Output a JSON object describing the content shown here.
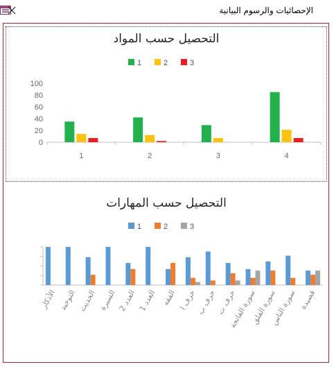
{
  "window": {
    "title": "الإحصائيات والرسوم البيانية",
    "icon": "form-icon",
    "close_icon": "close-icon"
  },
  "chart_data": [
    {
      "type": "bar",
      "title": "التحصيل حسب المواد",
      "categories": [
        "1",
        "2",
        "3",
        "4"
      ],
      "series": [
        {
          "name": "1",
          "color": "#22b14c",
          "values": [
            35,
            42,
            29,
            85
          ]
        },
        {
          "name": "2",
          "color": "#ffc20e",
          "values": [
            14,
            12,
            7,
            21
          ]
        },
        {
          "name": "3",
          "color": "#ed1c24",
          "values": [
            7,
            2,
            0,
            7
          ]
        }
      ],
      "ylim": [
        0,
        100
      ],
      "yticks": [
        0,
        20,
        40,
        60,
        80,
        100
      ],
      "legend": "top-center",
      "grid": false
    },
    {
      "type": "bar",
      "title": "التحصيل حسب المهارات",
      "categories": [
        "الأذكار",
        "التوحيد",
        "الحديث",
        "السيرة",
        "العدد 2",
        "العدد 1",
        "الفقه",
        "حرف ا",
        "حرف ب",
        "حرف ت",
        "سورة الفاتحة",
        "سورة الفلق",
        "سورة الناس",
        "قصيدة"
      ],
      "series": [
        {
          "name": "1",
          "color": "#5b9bd5",
          "values": [
            100,
            100,
            73,
            100,
            58,
            100,
            42,
            73,
            88,
            58,
            42,
            62,
            77,
            38
          ]
        },
        {
          "name": "2",
          "color": "#ed7d31",
          "values": [
            0,
            0,
            27,
            0,
            42,
            0,
            58,
            19,
            12,
            31,
            19,
            38,
            19,
            27
          ]
        },
        {
          "name": "3",
          "color": "#a5a5a5",
          "values": [
            0,
            0,
            0,
            0,
            0,
            0,
            0,
            8,
            0,
            12,
            38,
            0,
            0,
            38
          ]
        }
      ],
      "ylim": [
        0,
        100
      ],
      "legend": "top-center",
      "grid": false
    }
  ]
}
